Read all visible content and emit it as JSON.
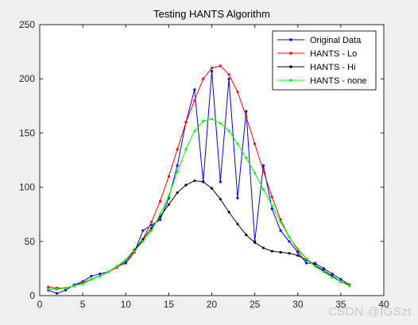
{
  "watermark": "CSDN @IGSzt",
  "chart_data": {
    "type": "line",
    "title": "Testing HANTS Algorithm",
    "xlabel": "",
    "ylabel": "",
    "xlim": [
      0,
      40
    ],
    "ylim": [
      0,
      250
    ],
    "xticks": [
      0,
      5,
      10,
      15,
      20,
      25,
      30,
      35,
      40
    ],
    "yticks": [
      0,
      50,
      100,
      150,
      200,
      250
    ],
    "grid": false,
    "legend": "top-right",
    "x": [
      1,
      2,
      3,
      4,
      5,
      6,
      7,
      8,
      9,
      10,
      11,
      12,
      13,
      14,
      15,
      16,
      17,
      18,
      19,
      20,
      21,
      22,
      23,
      24,
      25,
      26,
      27,
      28,
      29,
      30,
      31,
      32,
      33,
      34,
      35,
      36
    ],
    "series": [
      {
        "name": "Original Data",
        "color": "#0000ff",
        "values": [
          5,
          2,
          5,
          10,
          13,
          18,
          20,
          22,
          27,
          30,
          40,
          60,
          65,
          70,
          90,
          120,
          160,
          190,
          105,
          207,
          105,
          200,
          90,
          170,
          50,
          120,
          80,
          60,
          50,
          40,
          30,
          30,
          25,
          20,
          15,
          10
        ]
      },
      {
        "name": "HANTS - Lo",
        "color": "#ff0000",
        "values": [
          8,
          7,
          7,
          9,
          12,
          15,
          18,
          22,
          26,
          32,
          40,
          52,
          68,
          87,
          110,
          135,
          160,
          180,
          200,
          210,
          212,
          204,
          188,
          165,
          140,
          115,
          91,
          70,
          54,
          42,
          34,
          28,
          22,
          17,
          13,
          10
        ]
      },
      {
        "name": "HANTS - Hi",
        "color": "#000000",
        "values": [
          6,
          6,
          7,
          9,
          11,
          15,
          18,
          22,
          27,
          33,
          42,
          52,
          62,
          73,
          84,
          95,
          102,
          106,
          105,
          99,
          89,
          77,
          66,
          56,
          49,
          44,
          41,
          40,
          39,
          37,
          33,
          28,
          23,
          18,
          13,
          9
        ]
      },
      {
        "name": "HANTS - none",
        "color": "#00ff00",
        "values": [
          6,
          6,
          7,
          9,
          11,
          15,
          18,
          22,
          27,
          33,
          41,
          50,
          60,
          75,
          92,
          114,
          135,
          152,
          161,
          163,
          159,
          152,
          140,
          127,
          113,
          98,
          83,
          68,
          54,
          43,
          34,
          27,
          22,
          17,
          13,
          9
        ]
      }
    ]
  }
}
